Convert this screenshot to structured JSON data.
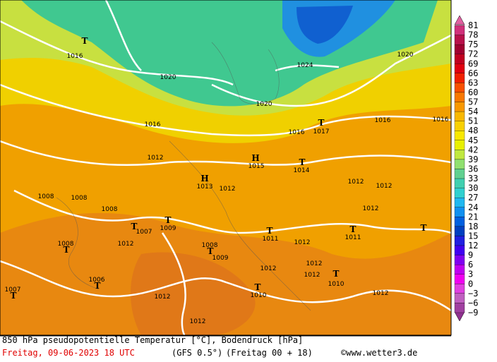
{
  "map": {
    "labels": [
      "T",
      "1016",
      "1020",
      "1024",
      "1020",
      "1020",
      "1016",
      "1016",
      "T",
      "1017",
      "1016",
      "1016",
      "1012",
      "H",
      "1015",
      "T",
      "1014",
      "H",
      "1013",
      "1012",
      "1012",
      "1012",
      "1012",
      "1008",
      "1008",
      "1008",
      "T",
      "1007",
      "T",
      "1009",
      "T",
      "1011",
      "1012",
      "T",
      "1011",
      "T",
      "1012",
      "1008",
      "T",
      "1006",
      "T",
      "1007",
      "T",
      "1008",
      "T",
      "1009",
      "1012",
      "1012",
      "T",
      "1010",
      "T",
      "1010",
      "1012",
      "1012",
      "1012",
      "1012"
    ]
  },
  "colorbar": {
    "labels": [
      "81",
      "78",
      "75",
      "72",
      "69",
      "66",
      "63",
      "60",
      "57",
      "54",
      "51",
      "48",
      "45",
      "42",
      "39",
      "36",
      "33",
      "30",
      "27",
      "24",
      "21",
      "18",
      "15",
      "12",
      "9",
      "6",
      "3",
      "0",
      "−3",
      "−6",
      "−9"
    ],
    "colors": [
      "#d0307a",
      "#b8104a",
      "#a00030",
      "#c00020",
      "#e00010",
      "#f02000",
      "#f85000",
      "#f87800",
      "#f89800",
      "#f8b800",
      "#f8d000",
      "#f8e800",
      "#e8f000",
      "#c0e840",
      "#90e070",
      "#60d090",
      "#40d0b0",
      "#30d0d0",
      "#20b8f0",
      "#1090f0",
      "#0060e0",
      "#0040c0",
      "#2020e0",
      "#4000f0",
      "#8000f0",
      "#c000f0",
      "#f000f0",
      "#e040e0",
      "#c060c0",
      "#a040a0"
    ]
  },
  "footer": {
    "line1": "850 hPa pseudopotentielle Temperatur [°C], Bodendruck [hPa]",
    "date": "Freitag, 09-06-2023  18 UTC",
    "model": "(GFS 0.5°)",
    "run": "(Freitag 00 + 18)",
    "credit": "©www.wetter3.de"
  }
}
